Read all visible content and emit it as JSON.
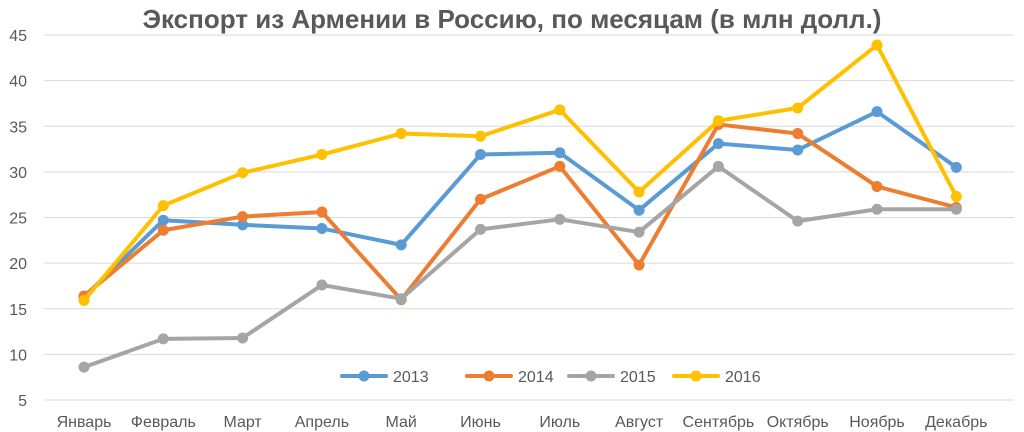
{
  "chart_data": {
    "type": "line",
    "title": "Экспорт из Армении в Россию, по месяцам (в млн долл.)",
    "xlabel": "",
    "ylabel": "",
    "categories": [
      "Январь",
      "Февраль",
      "Март",
      "Апрель",
      "Май",
      "Июнь",
      "Июль",
      "Август",
      "Сентябрь",
      "Октябрь",
      "Ноябрь",
      "Декабрь"
    ],
    "ylim": [
      5,
      45
    ],
    "yticks": [
      5,
      10,
      15,
      20,
      25,
      30,
      35,
      40,
      45
    ],
    "grid": true,
    "legend_position": "bottom-center",
    "series": [
      {
        "name": "2013",
        "color": "#5B9BD5",
        "values": [
          16.3,
          24.7,
          24.2,
          23.8,
          22.0,
          31.9,
          32.1,
          25.8,
          33.1,
          32.4,
          36.6,
          30.5
        ]
      },
      {
        "name": "2014",
        "color": "#ED7D31",
        "values": [
          16.4,
          23.6,
          25.1,
          25.6,
          16.0,
          27.0,
          30.6,
          19.8,
          35.2,
          34.2,
          28.4,
          26.1
        ]
      },
      {
        "name": "2015",
        "color": "#A5A5A5",
        "values": [
          8.6,
          11.7,
          11.8,
          17.6,
          16.1,
          23.7,
          24.8,
          23.4,
          30.6,
          24.6,
          25.9,
          25.9
        ]
      },
      {
        "name": "2016",
        "color": "#FFC000",
        "values": [
          15.9,
          26.3,
          29.9,
          31.9,
          34.2,
          33.9,
          36.8,
          27.8,
          35.6,
          37.0,
          43.9,
          27.3
        ]
      }
    ]
  }
}
